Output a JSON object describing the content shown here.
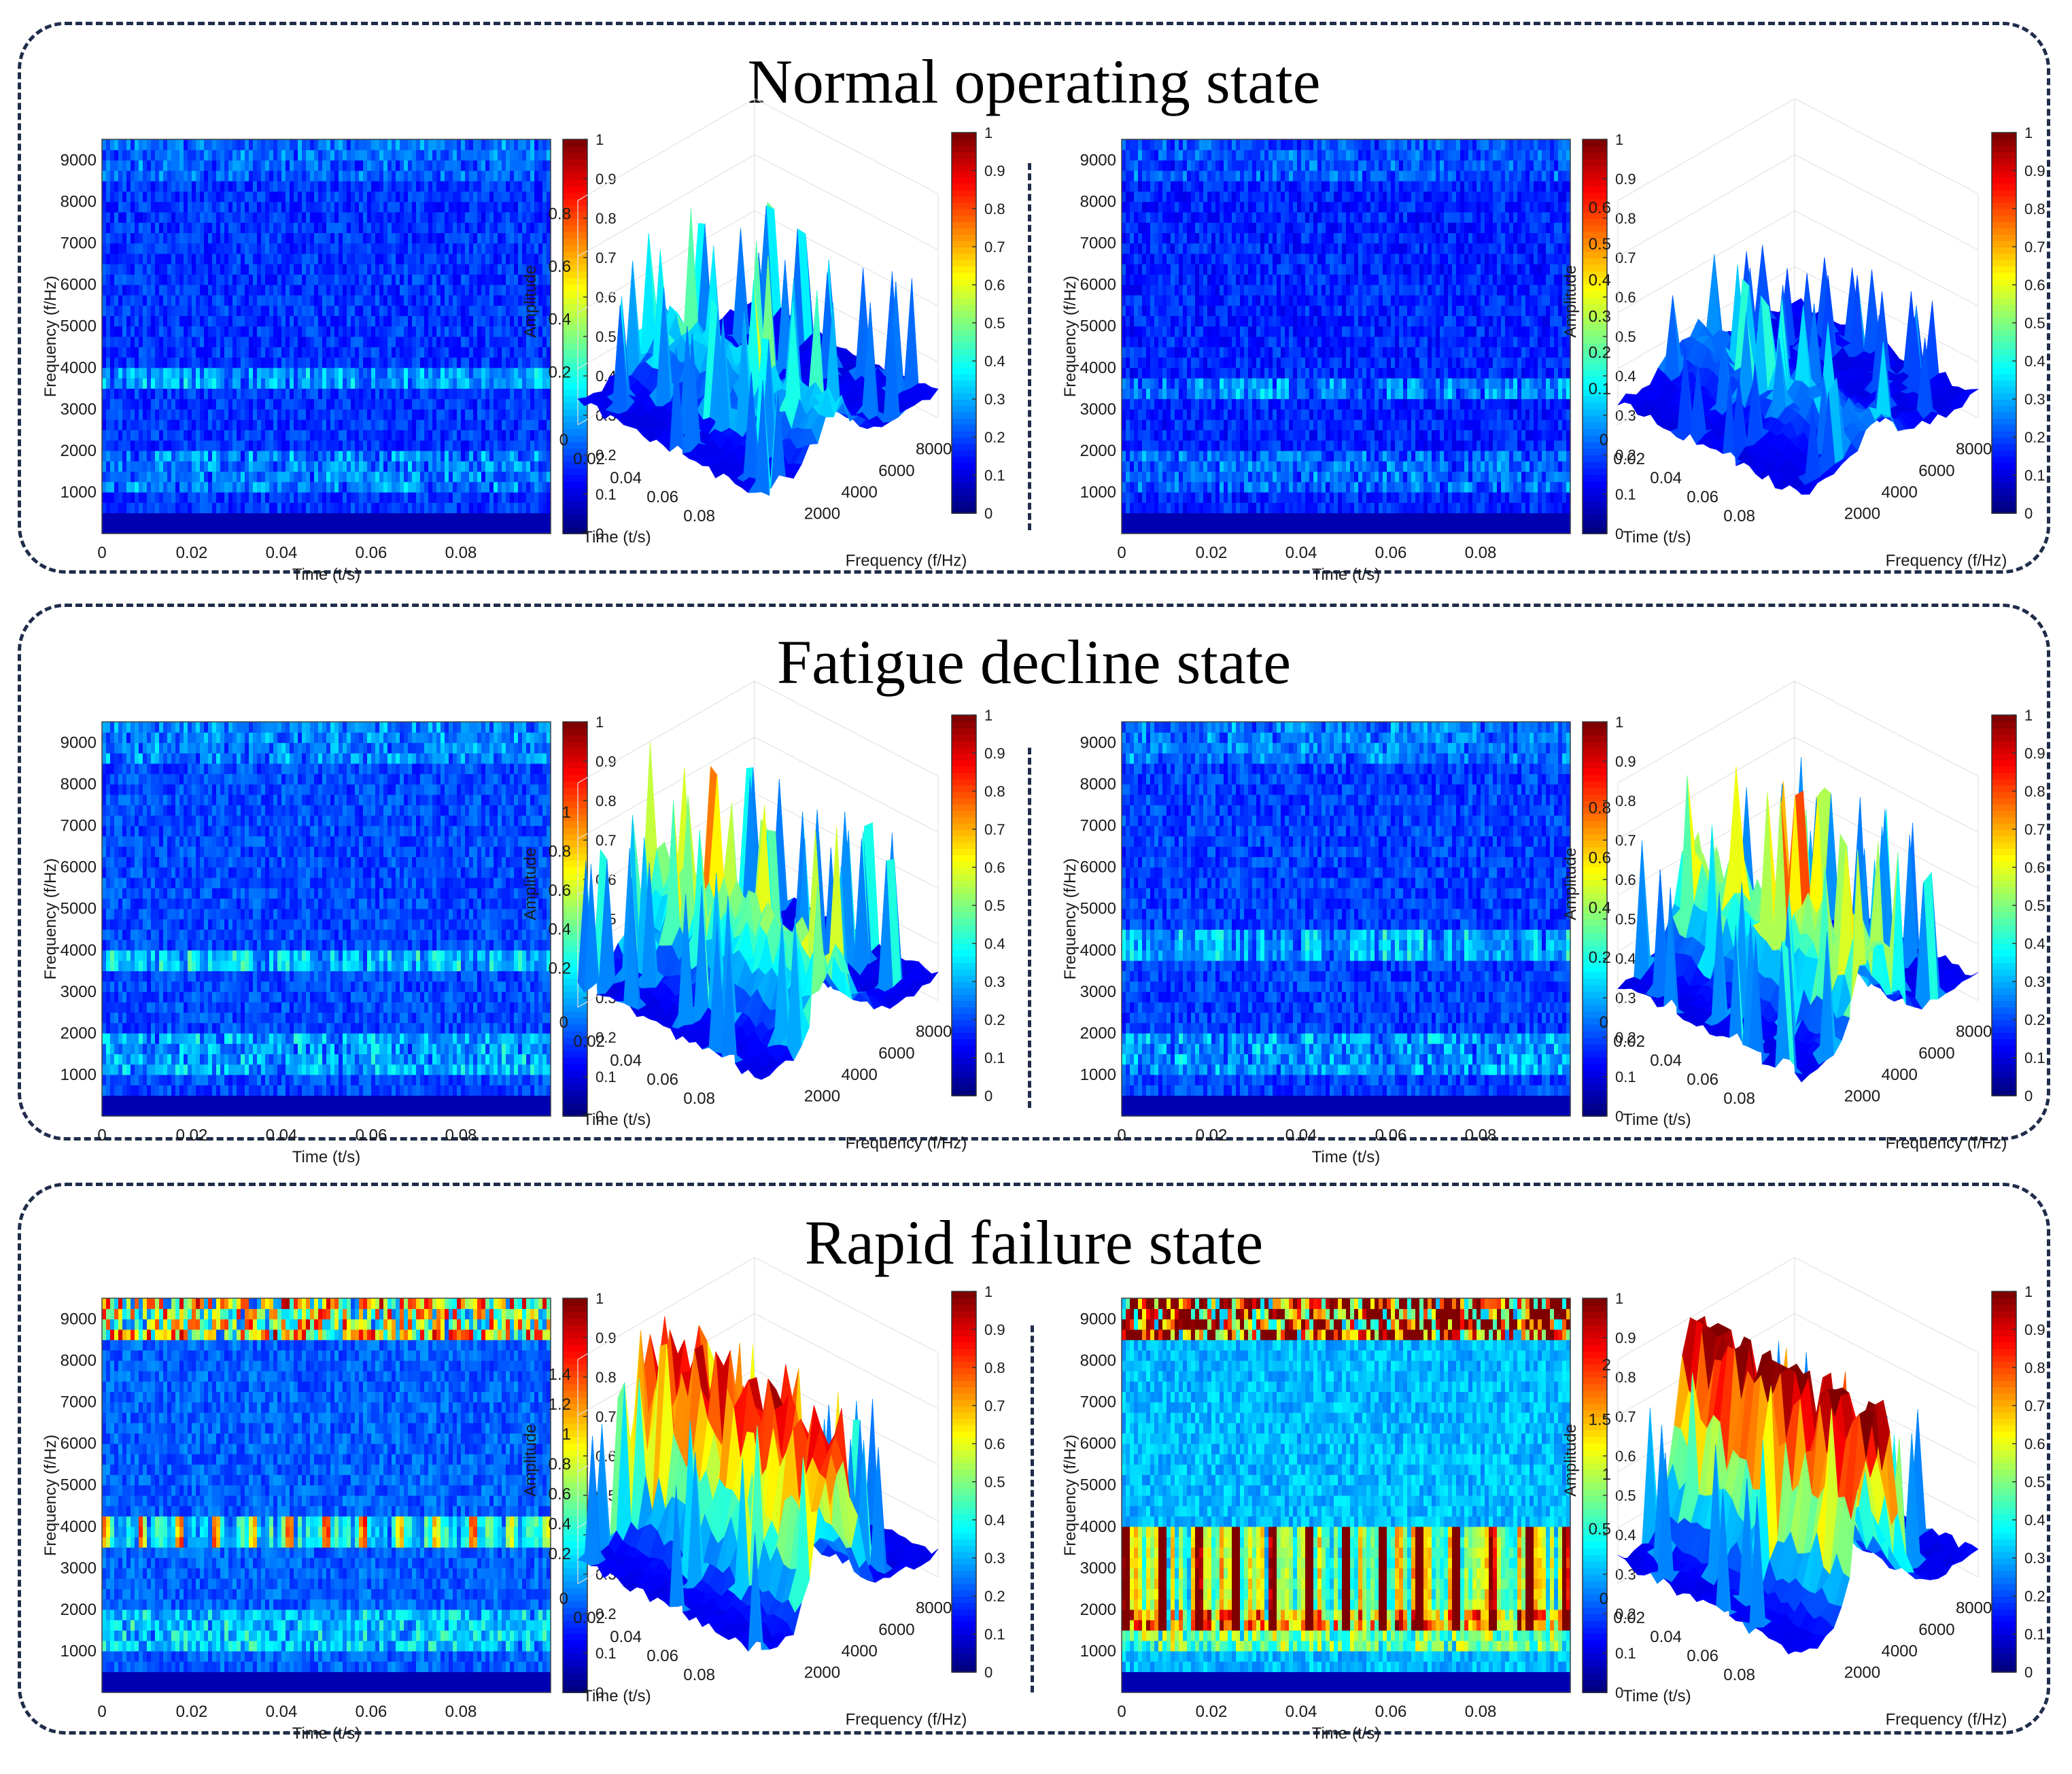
{
  "figure": {
    "panels": [
      {
        "title": "Normal operating state"
      },
      {
        "title": "Fatigue decline state"
      },
      {
        "title": "Rapid failure state"
      }
    ]
  },
  "colors": {
    "frame": "#1f2d4a",
    "colormap": "jet",
    "colormap_stops": [
      "#00008f",
      "#0000ff",
      "#00bfff",
      "#40e0d0",
      "#ffff00",
      "#ff8000",
      "#ff0000",
      "#7f0000"
    ]
  },
  "chart_data": [
    {
      "type": "heatmap",
      "panel": "Normal operating state",
      "position": "left",
      "xlabel": "Time (t/s)",
      "ylabel": "Frequency (f/Hz)",
      "xticks": [
        "0",
        "0.02",
        "0.04",
        "0.06",
        "0.08"
      ],
      "yticks": [
        "1000",
        "2000",
        "3000",
        "4000",
        "5000",
        "6000",
        "7000",
        "8000",
        "9000"
      ],
      "xlim": [
        0,
        0.1
      ],
      "ylim": [
        0,
        9500
      ],
      "colorbar_ticks": [
        "0",
        "0.1",
        "0.2",
        "0.3",
        "0.4",
        "0.5",
        "0.6",
        "0.7",
        "0.8",
        "0.9",
        "1"
      ],
      "clim": [
        0,
        1
      ],
      "level": 0.25,
      "band": [
        3500,
        4000
      ],
      "periodic": false
    },
    {
      "type": "surface3d",
      "panel": "Normal operating state",
      "position": "left",
      "zlabel": "Amplitude",
      "xlabel": "Time (t/s)",
      "ylabel": "Frequency (f/Hz)",
      "zticks": [
        "0.2",
        "0.4",
        "0.6",
        "0.8"
      ],
      "zmax": 0.85,
      "time_ticks": [
        "0",
        "0.02",
        "0.04",
        "0.06",
        "0.08"
      ],
      "freq_ticks": [
        "2000",
        "4000",
        "6000",
        "8000"
      ],
      "colorbar_ticks": [
        "0",
        "0.1",
        "0.2",
        "0.3",
        "0.4",
        "0.5",
        "0.6",
        "0.7",
        "0.8",
        "0.9",
        "1"
      ],
      "clim": [
        0,
        1
      ],
      "level": 0.25,
      "peak_fraction": 0.85
    },
    {
      "type": "heatmap",
      "panel": "Normal operating state",
      "position": "right",
      "xlabel": "Time (t/s)",
      "ylabel": "Frequency (f/Hz)",
      "xticks": [
        "0",
        "0.02",
        "0.04",
        "0.06",
        "0.08"
      ],
      "yticks": [
        "1000",
        "2000",
        "3000",
        "4000",
        "5000",
        "6000",
        "7000",
        "8000",
        "9000"
      ],
      "xlim": [
        0,
        0.1
      ],
      "ylim": [
        0,
        9500
      ],
      "colorbar_ticks": [
        "0",
        "0.1",
        "0.2",
        "0.3",
        "0.4",
        "0.5",
        "0.6",
        "0.7",
        "0.8",
        "0.9",
        "1"
      ],
      "clim": [
        0,
        1
      ],
      "level": 0.22,
      "band": [
        3300,
        3800
      ],
      "periodic": false
    },
    {
      "type": "surface3d",
      "panel": "Normal operating state",
      "position": "right",
      "zlabel": "Amplitude",
      "xlabel": "Time (t/s)",
      "ylabel": "Frequency (f/Hz)",
      "zticks": [
        "0.1",
        "0.2",
        "0.3",
        "0.4",
        "0.5",
        "0.6"
      ],
      "zmax": 0.62,
      "time_ticks": [
        "0",
        "0.02",
        "0.04",
        "0.06",
        "0.08"
      ],
      "freq_ticks": [
        "2000",
        "4000",
        "6000",
        "8000"
      ],
      "colorbar_ticks": [
        "0",
        "0.1",
        "0.2",
        "0.3",
        "0.4",
        "0.5",
        "0.6",
        "0.7",
        "0.8",
        "0.9",
        "1"
      ],
      "clim": [
        0,
        1
      ],
      "level": 0.22,
      "peak_fraction": 0.6
    },
    {
      "type": "heatmap",
      "panel": "Fatigue decline state",
      "position": "left",
      "xlabel": "Time (t/s)",
      "ylabel": "Frequency (f/Hz)",
      "xticks": [
        "0",
        "0.02",
        "0.04",
        "0.06",
        "0.08"
      ],
      "yticks": [
        "1000",
        "2000",
        "3000",
        "4000",
        "5000",
        "6000",
        "7000",
        "8000",
        "9000"
      ],
      "xlim": [
        0,
        0.1
      ],
      "ylim": [
        0,
        9500
      ],
      "colorbar_ticks": [
        "0",
        "0.1",
        "0.2",
        "0.3",
        "0.4",
        "0.5",
        "0.6",
        "0.7",
        "0.8",
        "0.9",
        "1"
      ],
      "clim": [
        0,
        1
      ],
      "level": 0.3,
      "band": [
        3500,
        4000
      ],
      "periodic": false
    },
    {
      "type": "surface3d",
      "panel": "Fatigue decline state",
      "position": "left",
      "zlabel": "Amplitude",
      "xlabel": "Time (t/s)",
      "ylabel": "Frequency (f/Hz)",
      "zticks": [
        "0.2",
        "0.4",
        "0.6",
        "0.8",
        "1"
      ],
      "zmax": 1.15,
      "time_ticks": [
        "0",
        "0.02",
        "0.04",
        "0.06",
        "0.08"
      ],
      "freq_ticks": [
        "2000",
        "4000",
        "6000",
        "8000"
      ],
      "colorbar_ticks": [
        "0",
        "0.1",
        "0.2",
        "0.3",
        "0.4",
        "0.5",
        "0.6",
        "0.7",
        "0.8",
        "0.9",
        "1"
      ],
      "clim": [
        0,
        1
      ],
      "level": 0.35,
      "peak_fraction": 1.0
    },
    {
      "type": "heatmap",
      "panel": "Fatigue decline state",
      "position": "right",
      "xlabel": "Time (t/s)",
      "ylabel": "Frequency (f/Hz)",
      "xticks": [
        "0",
        "0.02",
        "0.04",
        "0.06",
        "0.08"
      ],
      "yticks": [
        "1000",
        "2000",
        "3000",
        "4000",
        "5000",
        "6000",
        "7000",
        "8000",
        "9000"
      ],
      "xlim": [
        0,
        0.1
      ],
      "ylim": [
        0,
        9500
      ],
      "colorbar_ticks": [
        "0",
        "0.1",
        "0.2",
        "0.3",
        "0.4",
        "0.5",
        "0.6",
        "0.7",
        "0.8",
        "0.9",
        "1"
      ],
      "clim": [
        0,
        1
      ],
      "level": 0.28,
      "band": [
        3800,
        4400
      ],
      "periodic": false
    },
    {
      "type": "surface3d",
      "panel": "Fatigue decline state",
      "position": "right",
      "zlabel": "Amplitude",
      "xlabel": "Time (t/s)",
      "ylabel": "Frequency (f/Hz)",
      "zticks": [
        "0.2",
        "0.4",
        "0.6",
        "0.8"
      ],
      "zmax": 0.9,
      "time_ticks": [
        "0",
        "0.02",
        "0.04",
        "0.06",
        "0.08"
      ],
      "freq_ticks": [
        "2000",
        "4000",
        "6000",
        "8000"
      ],
      "colorbar_ticks": [
        "0",
        "0.1",
        "0.2",
        "0.3",
        "0.4",
        "0.5",
        "0.6",
        "0.7",
        "0.8",
        "0.9",
        "1"
      ],
      "clim": [
        0,
        1
      ],
      "level": 0.4,
      "peak_fraction": 1.0
    },
    {
      "type": "heatmap",
      "panel": "Rapid failure state",
      "position": "left",
      "xlabel": "Time (t/s)",
      "ylabel": "Frequency (f/Hz)",
      "xticks": [
        "0",
        "0.02",
        "0.04",
        "0.06",
        "0.08"
      ],
      "yticks": [
        "1000",
        "2000",
        "3000",
        "4000",
        "5000",
        "6000",
        "7000",
        "8000",
        "9000"
      ],
      "xlim": [
        0,
        0.1
      ],
      "ylim": [
        0,
        9500
      ],
      "colorbar_ticks": [
        "0",
        "0.1",
        "0.2",
        "0.3",
        "0.4",
        "0.5",
        "0.6",
        "0.7",
        "0.8",
        "0.9",
        "1"
      ],
      "clim": [
        0,
        1
      ],
      "level": 0.35,
      "band": [
        3500,
        4200
      ],
      "periodic": true
    },
    {
      "type": "surface3d",
      "panel": "Rapid failure state",
      "position": "left",
      "zlabel": "Amplitude",
      "xlabel": "Time (t/s)",
      "ylabel": "Frequency (f/Hz)",
      "zticks": [
        "0.2",
        "0.4",
        "0.6",
        "0.8",
        "1",
        "1.2",
        "1.4"
      ],
      "zmax": 1.5,
      "time_ticks": [
        "0",
        "0.02",
        "0.04",
        "0.06",
        "0.08"
      ],
      "freq_ticks": [
        "2000",
        "4000",
        "6000",
        "8000"
      ],
      "colorbar_ticks": [
        "0",
        "0.1",
        "0.2",
        "0.3",
        "0.4",
        "0.5",
        "0.6",
        "0.7",
        "0.8",
        "0.9",
        "1"
      ],
      "clim": [
        0,
        1
      ],
      "level": 0.7,
      "peak_fraction": 1.0
    },
    {
      "type": "heatmap",
      "panel": "Rapid failure state",
      "position": "right",
      "xlabel": "Time (t/s)",
      "ylabel": "Frequency (f/Hz)",
      "xticks": [
        "0",
        "0.02",
        "0.04",
        "0.06",
        "0.08"
      ],
      "yticks": [
        "1000",
        "2000",
        "3000",
        "4000",
        "5000",
        "6000",
        "7000",
        "8000",
        "9000"
      ],
      "xlim": [
        0,
        0.1
      ],
      "ylim": [
        0,
        9500
      ],
      "colorbar_ticks": [
        "0",
        "0.1",
        "0.2",
        "0.3",
        "0.4",
        "0.5",
        "0.6",
        "0.7",
        "0.8",
        "0.9",
        "1"
      ],
      "clim": [
        0,
        1
      ],
      "level": 0.55,
      "band": [
        1500,
        4000
      ],
      "periodic": true
    },
    {
      "type": "surface3d",
      "panel": "Rapid failure state",
      "position": "right",
      "zlabel": "Amplitude",
      "xlabel": "Time (t/s)",
      "ylabel": "Frequency (f/Hz)",
      "zticks": [
        "0.5",
        "1",
        "1.5",
        "2"
      ],
      "zmax": 2.05,
      "time_ticks": [
        "0",
        "0.02",
        "0.04",
        "0.06",
        "0.08"
      ],
      "freq_ticks": [
        "2000",
        "4000",
        "6000",
        "8000"
      ],
      "colorbar_ticks": [
        "0",
        "0.1",
        "0.2",
        "0.3",
        "0.4",
        "0.5",
        "0.6",
        "0.7",
        "0.8",
        "0.9",
        "1"
      ],
      "clim": [
        0,
        1
      ],
      "level": 0.85,
      "peak_fraction": 1.0
    }
  ]
}
